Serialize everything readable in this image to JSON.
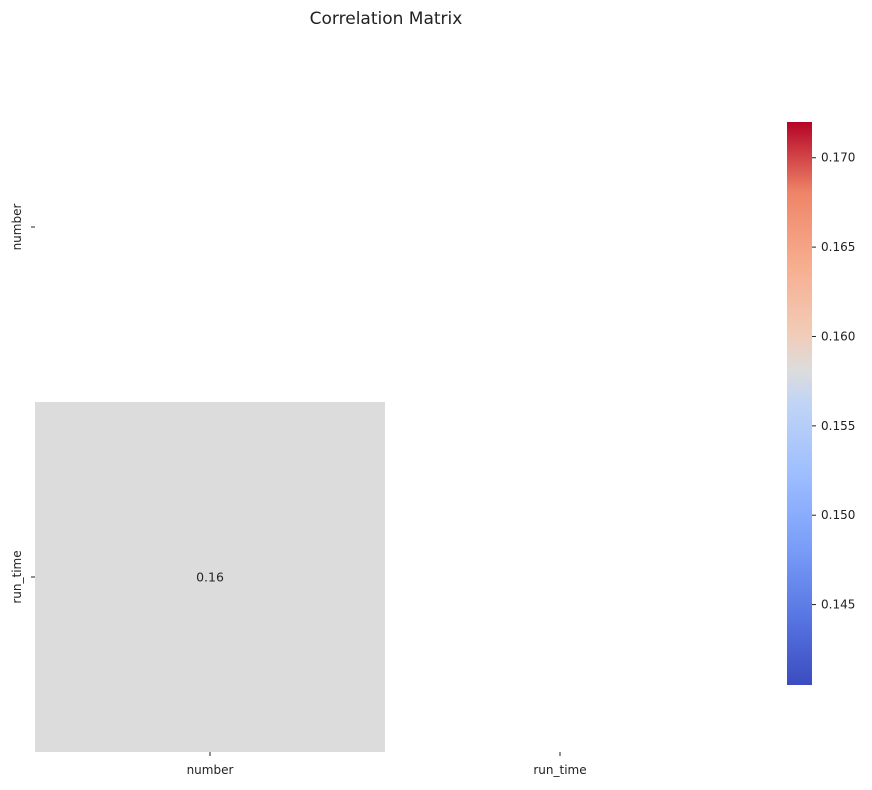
{
  "chart_data": {
    "type": "heatmap",
    "title": "Correlation Matrix",
    "xlabel": "",
    "ylabel": "",
    "x_categories": [
      "number",
      "run_time"
    ],
    "y_categories": [
      "number",
      "run_time"
    ],
    "mask": "upper-triangle-including-diagonal",
    "cells": [
      {
        "row": "run_time",
        "col": "number",
        "value": 0.16
      }
    ],
    "annotations": [
      "0.16"
    ],
    "colorbar": {
      "colormap": "coolwarm",
      "range": [
        0.1405,
        0.172
      ],
      "ticks": [
        0.145,
        0.15,
        0.155,
        0.16,
        0.165,
        0.17
      ],
      "tick_labels": [
        "0.145",
        "0.150",
        "0.155",
        "0.160",
        "0.165",
        "0.170"
      ],
      "position": "right"
    },
    "cell_color": "#dcdcdc",
    "grid": false
  }
}
